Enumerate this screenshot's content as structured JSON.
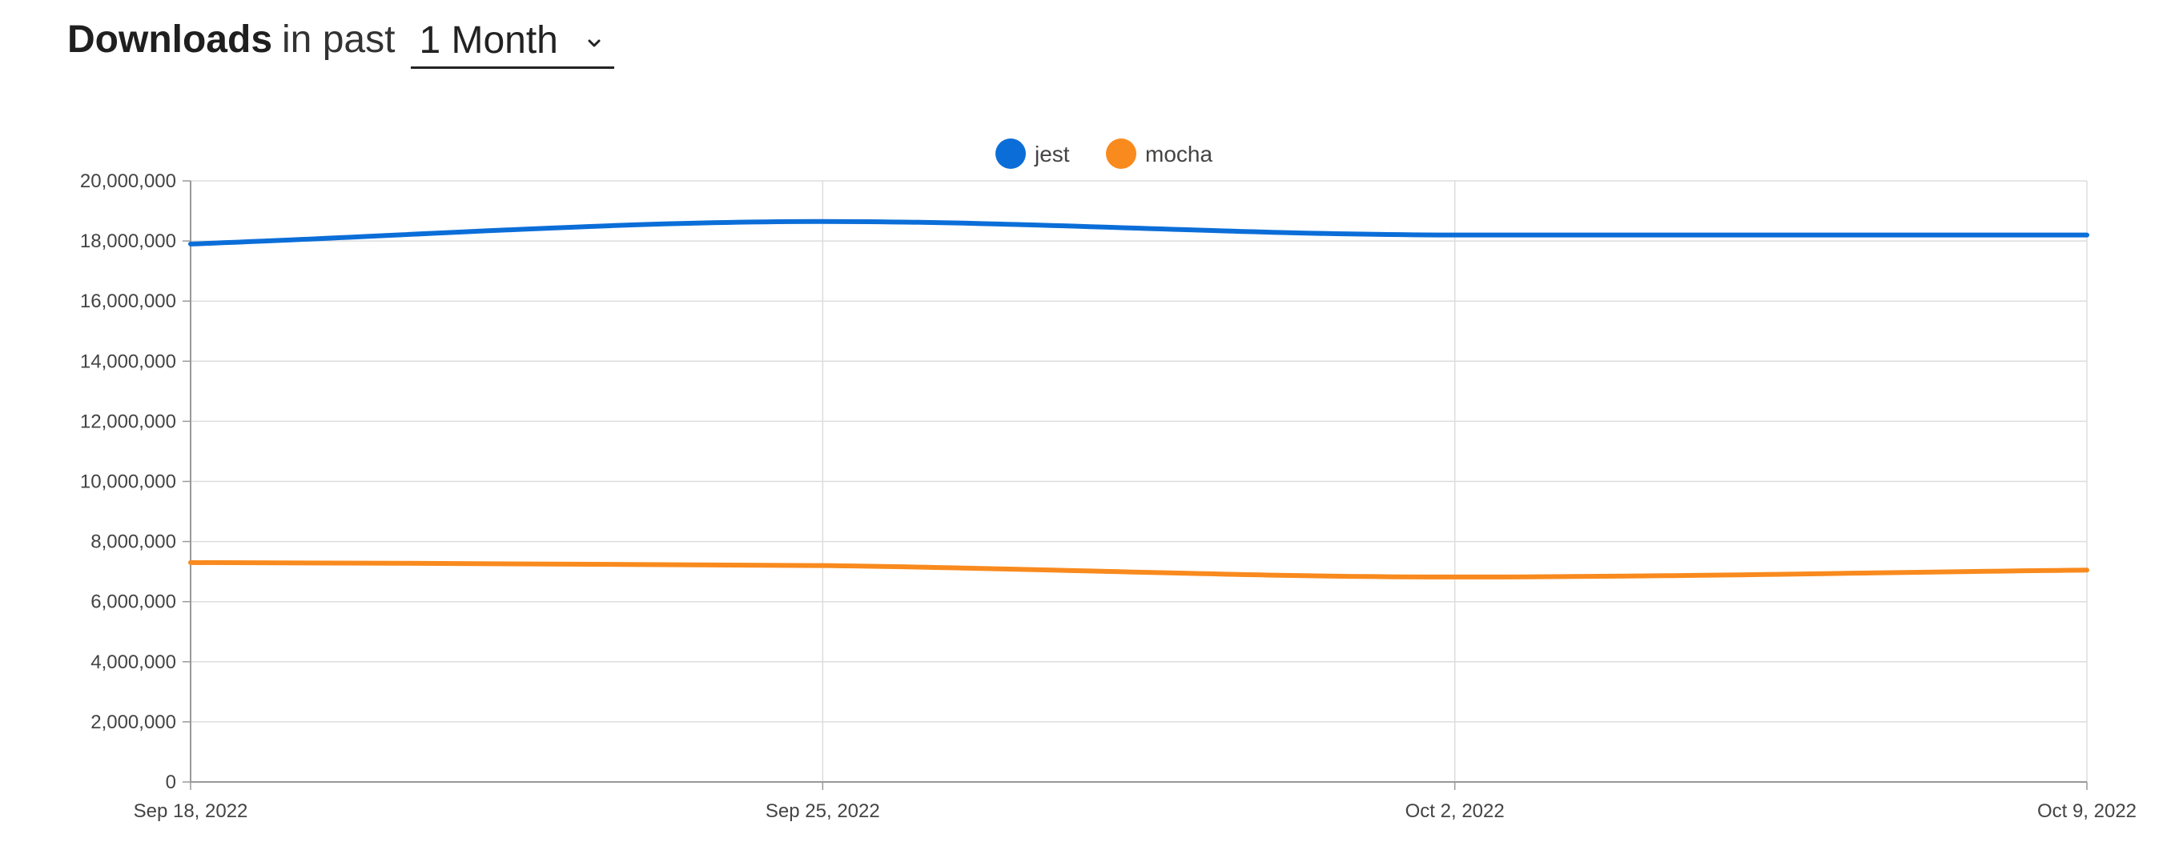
{
  "header": {
    "title_strong": "Downloads",
    "title_light": "in past",
    "period_selected": "1 Month"
  },
  "chart_data": {
    "type": "line",
    "x": [
      "Sep 18, 2022",
      "Sep 25, 2022",
      "Oct 2, 2022",
      "Oct 9, 2022"
    ],
    "x_tick_labels": [
      "Sep 18, 2022",
      "Sep 25, 2022",
      "Oct 2, 2022",
      "Oct 9, 2022"
    ],
    "y_tick_values": [
      0,
      2000000,
      4000000,
      6000000,
      8000000,
      10000000,
      12000000,
      14000000,
      16000000,
      18000000,
      20000000
    ],
    "y_tick_labels": [
      "0",
      "2,000,000",
      "4,000,000",
      "6,000,000",
      "8,000,000",
      "10,000,000",
      "12,000,000",
      "14,000,000",
      "16,000,000",
      "18,000,000",
      "20,000,000"
    ],
    "ylim": [
      0,
      20000000
    ],
    "series": [
      {
        "name": "jest",
        "color": "#0b6ed8",
        "values": [
          17900000,
          18650000,
          18200000,
          18200000
        ]
      },
      {
        "name": "mocha",
        "color": "#f98a1e",
        "values": [
          7300000,
          7200000,
          6820000,
          7050000
        ]
      }
    ],
    "legend_position": "top-center",
    "grid": true,
    "title": "",
    "xlabel": "",
    "ylabel": ""
  }
}
